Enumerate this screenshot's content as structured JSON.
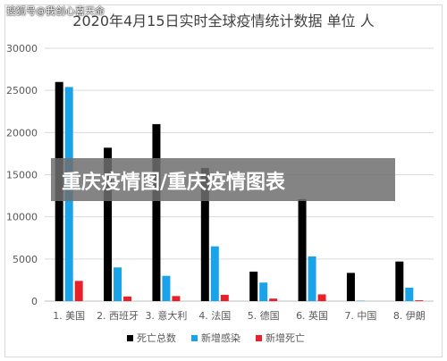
{
  "watermark": "搜狐号@我创心喜天命",
  "banner": "重庆疫情图/重庆疫情图表",
  "chart_data": {
    "type": "bar",
    "title": "2020年4月15日实时全球疫情统计数据 单位 人",
    "categories": [
      "1. 美国",
      "2. 西班牙",
      "3. 意大利",
      "4. 法国",
      "5. 德国",
      "6. 英国",
      "7. 中国",
      "8. 伊朗"
    ],
    "series": [
      {
        "name": "死亡总数",
        "color": "#000000",
        "values": [
          26000,
          18200,
          21000,
          15800,
          3500,
          12100,
          3350,
          4700
        ]
      },
      {
        "name": "新增感染",
        "color": "#1aa3e8",
        "values": [
          25400,
          4000,
          3000,
          6500,
          2200,
          5300,
          50,
          1600
        ]
      },
      {
        "name": "新增死亡",
        "color": "#e8202a",
        "values": [
          2400,
          550,
          600,
          750,
          300,
          800,
          0,
          100
        ]
      }
    ],
    "ylim": [
      0,
      30000
    ],
    "yticks": [
      0,
      5000,
      10000,
      15000,
      20000,
      25000,
      30000
    ],
    "xlabel": "",
    "ylabel": "",
    "grid": true,
    "legend_position": "bottom"
  }
}
